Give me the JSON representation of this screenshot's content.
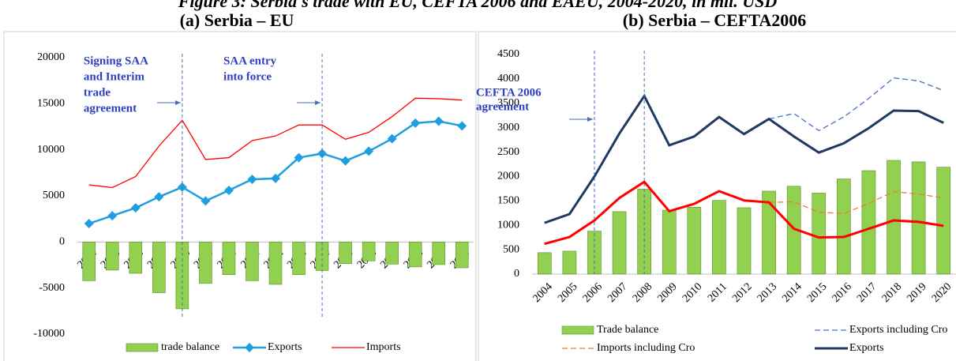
{
  "figure_title": "Figure 3: Serbia's trade with EU, CEFTA 2006 and EAEU, 2004-2020, in mil. USD",
  "chart_data": [
    {
      "type": "combo",
      "title": "(a) Serbia – EU",
      "categories": [
        "2004",
        "2005",
        "2006",
        "2007",
        "2008",
        "2009",
        "2010",
        "2011",
        "2012",
        "2013",
        "2014",
        "2015",
        "2016",
        "2017",
        "2018",
        "2019",
        "2020"
      ],
      "ylim": [
        -10000,
        20000
      ],
      "yticks": [
        -10000,
        -5000,
        0,
        5000,
        10000,
        15000,
        20000
      ],
      "series": [
        {
          "name": "trade balance",
          "type": "bar",
          "color": "#92d050",
          "values": [
            -4200,
            -3050,
            -3400,
            -5500,
            -7250,
            -4500,
            -3550,
            -4200,
            -4600,
            -3550,
            -3100,
            -2350,
            -2050,
            -2400,
            -2700,
            -2450,
            -2800
          ]
        },
        {
          "name": "Exports",
          "type": "line",
          "color": "#1f9ee0",
          "marker": "diamond",
          "values": [
            2000,
            2850,
            3700,
            4900,
            5950,
            4450,
            5600,
            6800,
            6900,
            9150,
            9600,
            8800,
            9850,
            11200,
            12900,
            13100,
            12600
          ]
        },
        {
          "name": "Imports",
          "type": "line",
          "color": "#ff0000",
          "values": [
            6200,
            5900,
            7100,
            10400,
            13200,
            8950,
            9150,
            11000,
            11500,
            12700,
            12700,
            11150,
            11900,
            13600,
            15600,
            15550,
            15400
          ]
        }
      ],
      "annotations": [
        {
          "x": "2008",
          "text": [
            "Signing SAA",
            "and Interim",
            "trade",
            "agreement"
          ]
        },
        {
          "x": "2014",
          "text": [
            "SAA entry",
            "into force"
          ]
        }
      ]
    },
    {
      "type": "combo",
      "title": "(b) Serbia – CEFTA2006",
      "categories": [
        "2004",
        "2005",
        "2006",
        "2007",
        "2008",
        "2009",
        "2010",
        "2011",
        "2012",
        "2013",
        "2014",
        "2015",
        "2016",
        "2017",
        "2018",
        "2019",
        "2020"
      ],
      "ylim": [
        0,
        4500
      ],
      "yticks": [
        0,
        500,
        1000,
        1500,
        2000,
        2500,
        3000,
        3500,
        4000,
        4500
      ],
      "series": [
        {
          "name": "Trade balance",
          "type": "bar",
          "color": "#92d050",
          "values": [
            440,
            470,
            880,
            1280,
            1740,
            1310,
            1370,
            1510,
            1360,
            1700,
            1800,
            1660,
            1950,
            2120,
            2330,
            2300,
            2190
          ]
        },
        {
          "name": "Exports including Cro",
          "type": "line",
          "color": "#4472c4",
          "dash": true,
          "values": [
            null,
            null,
            null,
            null,
            null,
            null,
            null,
            null,
            null,
            3180,
            3290,
            2940,
            3220,
            3600,
            4020,
            3960,
            3760
          ]
        },
        {
          "name": "Imports including Cro",
          "type": "line",
          "color": "#ed7d31",
          "dash": true,
          "values": [
            null,
            null,
            null,
            null,
            null,
            null,
            null,
            null,
            null,
            1470,
            1480,
            1270,
            1240,
            1450,
            1690,
            1640,
            1560
          ]
        },
        {
          "name": "Exports",
          "type": "line",
          "color": "#1f3864",
          "thick": true,
          "values": [
            1050,
            1230,
            2000,
            2880,
            3650,
            2640,
            2820,
            3220,
            2870,
            3180,
            2820,
            2490,
            2680,
            2990,
            3350,
            3340,
            3100
          ]
        },
        {
          "type": "line",
          "color": "#ff0000",
          "thick": true,
          "values": [
            620,
            760,
            1100,
            1560,
            1890,
            1290,
            1440,
            1700,
            1510,
            1470,
            930,
            750,
            760,
            930,
            1100,
            1070,
            990
          ]
        }
      ],
      "annotations": [
        {
          "x": "2006",
          "text": [
            "CEFTA 2006",
            "agreement"
          ]
        },
        {
          "x": "2008"
        }
      ]
    }
  ]
}
